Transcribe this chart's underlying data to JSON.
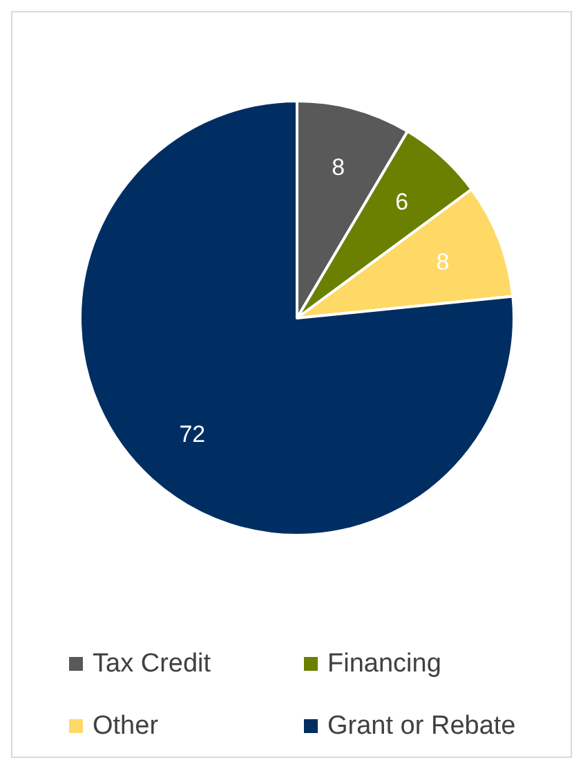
{
  "chart_data": {
    "type": "pie",
    "categories": [
      "Tax Credit",
      "Financing",
      "Other",
      "Grant or Rebate"
    ],
    "values": [
      8,
      6,
      8,
      72
    ],
    "colors": [
      "#595959",
      "#6b7f00",
      "#ffd966",
      "#002e63"
    ],
    "data_labels": true,
    "legend": "bottom"
  }
}
